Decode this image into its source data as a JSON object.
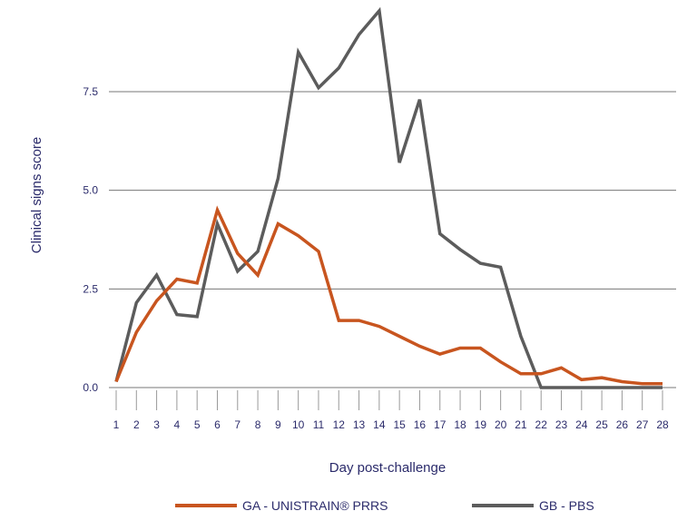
{
  "chart_data": {
    "type": "line",
    "xlabel": "Day post-challenge",
    "ylabel": "Clinical signs score",
    "ylim": [
      0,
      9.6
    ],
    "yticks": [
      "0.0",
      "2.5",
      "5.0",
      "7.5"
    ],
    "ytick_values": [
      0,
      2.5,
      5,
      7.5
    ],
    "grid": "horizontal",
    "legend_position": "bottom",
    "categories": [
      "1",
      "2",
      "3",
      "4",
      "5",
      "6",
      "7",
      "8",
      "9",
      "10",
      "11",
      "12",
      "13",
      "14",
      "15",
      "16",
      "17",
      "18",
      "19",
      "20",
      "21",
      "22",
      "23",
      "24",
      "25",
      "26",
      "27",
      "28"
    ],
    "series": [
      {
        "name": "GA - UNISTRAIN® PRRS",
        "color": "#c8551f",
        "values": [
          0.15,
          1.4,
          2.2,
          2.75,
          2.65,
          4.5,
          3.4,
          2.85,
          4.15,
          3.85,
          3.45,
          1.7,
          1.7,
          1.55,
          1.3,
          1.05,
          0.85,
          1.0,
          1.0,
          0.65,
          0.35,
          0.35,
          0.5,
          0.2,
          0.25,
          0.15,
          0.1,
          0.1
        ]
      },
      {
        "name": "GB - PBS",
        "color": "#5c5c5c",
        "values": [
          0.15,
          2.15,
          2.85,
          1.85,
          1.8,
          4.15,
          2.95,
          3.45,
          5.3,
          8.5,
          7.6,
          8.1,
          8.95,
          9.55,
          5.7,
          7.3,
          3.9,
          3.5,
          3.15,
          3.05,
          1.3,
          0.0,
          0.0,
          0.0,
          0.0,
          0.0,
          0.0,
          0.0
        ]
      }
    ]
  }
}
